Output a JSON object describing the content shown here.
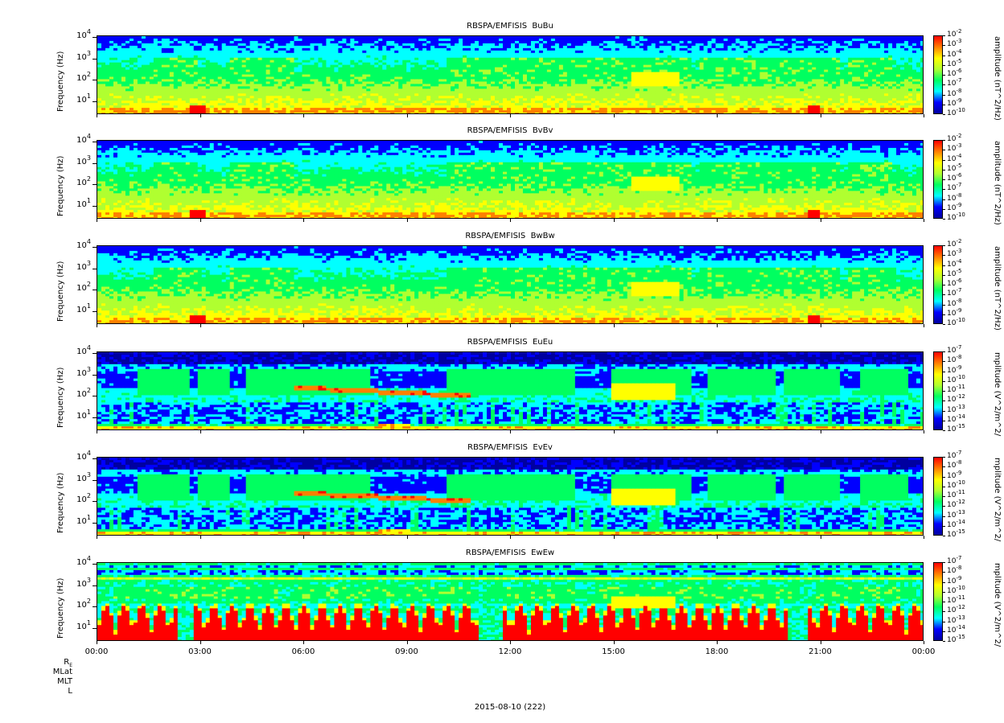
{
  "footer": "2015-08-10 (222)",
  "x_ticks": [
    "00:00",
    "03:00",
    "06:00",
    "09:00",
    "12:00",
    "15:00",
    "18:00",
    "21:00",
    "00:00"
  ],
  "ephemeris_labels": [
    "R_E",
    "MLat",
    "MLT",
    "L"
  ],
  "colormap": [
    "#0000a0",
    "#0000ff",
    "#00ffff",
    "#00ff60",
    "#b0ff30",
    "#ffff00",
    "#ff8000",
    "#ff0000"
  ],
  "chart_data": [
    {
      "type": "heatmap",
      "title": "RBSPA/EMFISIS  BuBu",
      "ylabel": "Frequency (Hz)",
      "yscale": "log",
      "ylim": [
        2.5,
        12000
      ],
      "yticks": [
        10,
        100,
        1000,
        10000
      ],
      "xlim": [
        "00:00",
        "24:00"
      ],
      "colorbar_label": "amplitude (nT^2/Hz)",
      "colorbar_scale": "log",
      "colorbar_range": [
        1e-10,
        0.01
      ],
      "colorbar_ticks": [
        -10,
        -9,
        -8,
        -7,
        -6,
        -5,
        -4,
        -3,
        -2
      ]
    },
    {
      "type": "heatmap",
      "title": "RBSPA/EMFISIS  BvBv",
      "ylabel": "Frequency (Hz)",
      "yscale": "log",
      "ylim": [
        2.5,
        12000
      ],
      "yticks": [
        10,
        100,
        1000,
        10000
      ],
      "xlim": [
        "00:00",
        "24:00"
      ],
      "colorbar_label": "amplitude (nT^2/Hz)",
      "colorbar_scale": "log",
      "colorbar_range": [
        1e-10,
        0.01
      ],
      "colorbar_ticks": [
        -10,
        -9,
        -8,
        -7,
        -6,
        -5,
        -4,
        -3,
        -2
      ]
    },
    {
      "type": "heatmap",
      "title": "RBSPA/EMFISIS  BwBw",
      "ylabel": "Frequency (Hz)",
      "yscale": "log",
      "ylim": [
        2.5,
        12000
      ],
      "yticks": [
        10,
        100,
        1000,
        10000
      ],
      "xlim": [
        "00:00",
        "24:00"
      ],
      "colorbar_label": "amplitude (nT^2/Hz)",
      "colorbar_scale": "log",
      "colorbar_range": [
        1e-10,
        0.01
      ],
      "colorbar_ticks": [
        -10,
        -9,
        -8,
        -7,
        -6,
        -5,
        -4,
        -3,
        -2
      ]
    },
    {
      "type": "heatmap",
      "title": "RBSPA/EMFISIS  EuEu",
      "ylabel": "Frequency (Hz)",
      "yscale": "log",
      "ylim": [
        2.5,
        12000
      ],
      "yticks": [
        10,
        100,
        1000,
        10000
      ],
      "xlim": [
        "00:00",
        "24:00"
      ],
      "colorbar_label": "mplitude (V^2/m^2/",
      "colorbar_scale": "log",
      "colorbar_range": [
        1e-15,
        1e-07
      ],
      "colorbar_ticks": [
        -15,
        -14,
        -13,
        -12,
        -11,
        -10,
        -9,
        -8,
        -7
      ]
    },
    {
      "type": "heatmap",
      "title": "RBSPA/EMFISIS  EvEv",
      "ylabel": "Frequency (Hz)",
      "yscale": "log",
      "ylim": [
        2.5,
        12000
      ],
      "yticks": [
        10,
        100,
        1000,
        10000
      ],
      "xlim": [
        "00:00",
        "24:00"
      ],
      "colorbar_label": "mplitude (V^2/m^2/",
      "colorbar_scale": "log",
      "colorbar_range": [
        1e-15,
        1e-07
      ],
      "colorbar_ticks": [
        -15,
        -14,
        -13,
        -12,
        -11,
        -10,
        -9,
        -8,
        -7
      ]
    },
    {
      "type": "heatmap",
      "title": "RBSPA/EMFISIS  EwEw",
      "ylabel": "Frequency (Hz)",
      "yscale": "log",
      "ylim": [
        2.5,
        12000
      ],
      "yticks": [
        10,
        100,
        1000,
        10000
      ],
      "xlim": [
        "00:00",
        "24:00"
      ],
      "colorbar_label": "mplitude (V^2/m^2/",
      "colorbar_scale": "log",
      "colorbar_range": [
        1e-15,
        1e-07
      ],
      "colorbar_ticks": [
        -15,
        -14,
        -13,
        -12,
        -11,
        -10,
        -9,
        -8,
        -7
      ]
    }
  ]
}
